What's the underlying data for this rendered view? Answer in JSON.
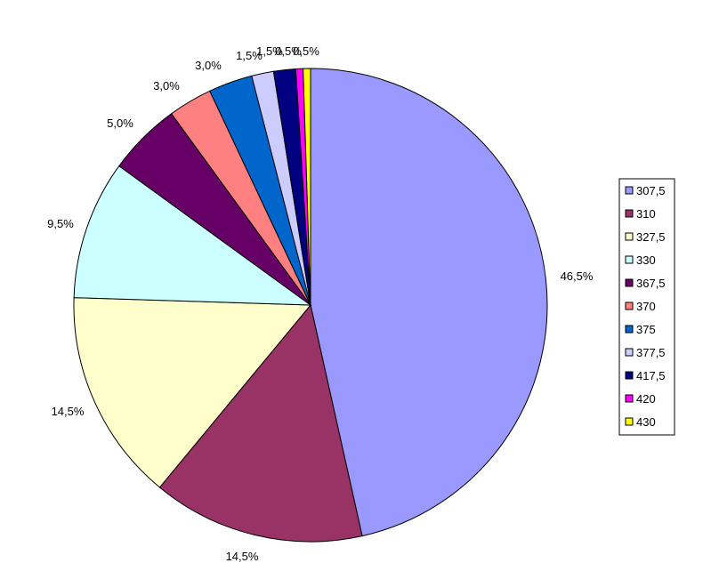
{
  "chart_data": {
    "type": "pie",
    "title": "",
    "categories": [
      "307,5",
      "310",
      "327,5",
      "330",
      "367,5",
      "370",
      "375",
      "377,5",
      "417,5",
      "420",
      "430"
    ],
    "values": [
      46.5,
      14.5,
      14.5,
      9.5,
      5.0,
      3.0,
      3.0,
      1.5,
      1.5,
      0.5,
      0.5
    ],
    "labels": [
      "46,5%",
      "14,5%",
      "14,5%",
      "9,5%",
      "5,0%",
      "3,0%",
      "3,0%",
      "1,5%",
      "1,5%",
      "0,5%",
      "0,5%"
    ],
    "colors": [
      "#9999ff",
      "#993366",
      "#ffffcc",
      "#ccffff",
      "#660066",
      "#ff8080",
      "#0066cc",
      "#ccccff",
      "#000080",
      "#ff00ff",
      "#ffff00"
    ],
    "legend_position": "right"
  }
}
